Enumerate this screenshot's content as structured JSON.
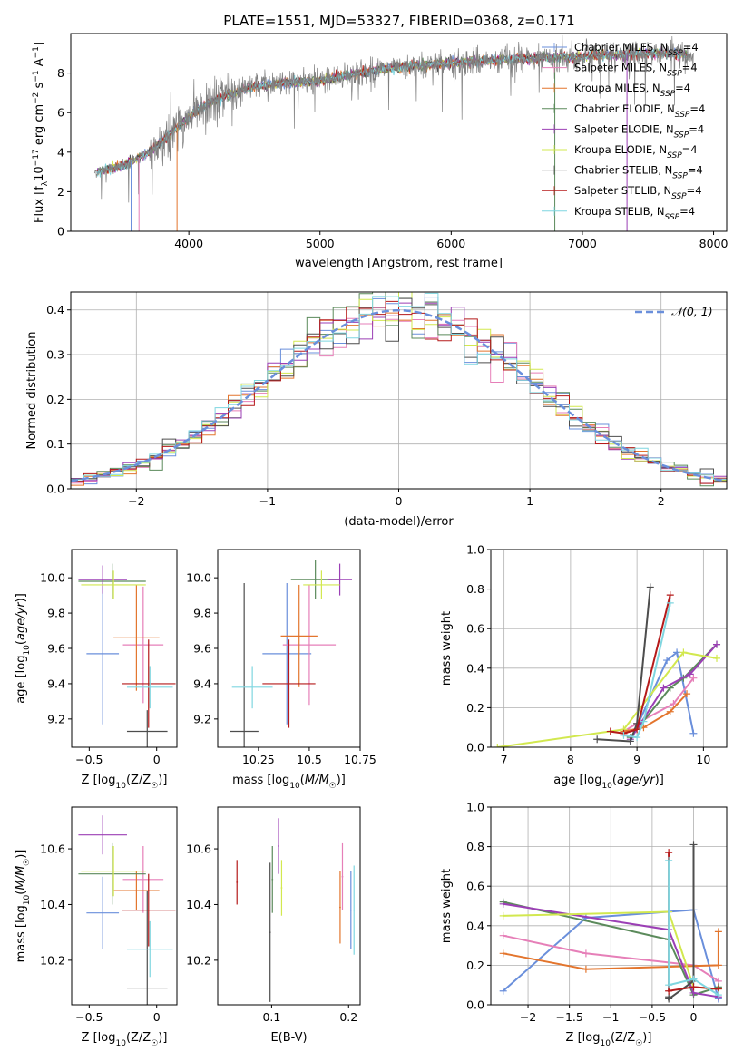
{
  "figure": {
    "title": "PLATE=1551, MJD=53327, FIBERID=0368, z=0.171"
  },
  "series_styles": [
    {
      "name": "Chabrier MILES, N_SSP=4",
      "color": "#6a8fdb"
    },
    {
      "name": "Salpeter MILES, N_SSP=4",
      "color": "#e67fb8"
    },
    {
      "name": "Kroupa MILES, N_SSP=4",
      "color": "#e3752d"
    },
    {
      "name": "Chabrier ELODIE, N_SSP=4",
      "color": "#5b8a5b"
    },
    {
      "name": "Salpeter ELODIE, N_SSP=4",
      "color": "#9b3fb5"
    },
    {
      "name": "Kroupa ELODIE, N_SSP=4",
      "color": "#d2e84f"
    },
    {
      "name": "Chabrier STELIB, N_SSP=4",
      "color": "#4d4d4d"
    },
    {
      "name": "Salpeter STELIB, N_SSP=4",
      "color": "#b51a1a"
    },
    {
      "name": "Kroupa STELIB, N_SSP=4",
      "color": "#7fd6e0"
    }
  ],
  "legend_labels": [
    {
      "pre": "Chabrier MILES, N",
      "sub": "SSP",
      "post": "=4"
    },
    {
      "pre": "Salpeter MILES, N",
      "sub": "SSP",
      "post": "=4"
    },
    {
      "pre": "Kroupa MILES, N",
      "sub": "SSP",
      "post": "=4"
    },
    {
      "pre": "Chabrier ELODIE, N",
      "sub": "SSP",
      "post": "=4"
    },
    {
      "pre": "Salpeter ELODIE, N",
      "sub": "SSP",
      "post": "=4"
    },
    {
      "pre": "Kroupa ELODIE, N",
      "sub": "SSP",
      "post": "=4"
    },
    {
      "pre": "Chabrier STELIB, N",
      "sub": "SSP",
      "post": "=4"
    },
    {
      "pre": "Salpeter STELIB, N",
      "sub": "SSP",
      "post": "=4"
    },
    {
      "pre": "Kroupa STELIB, N",
      "sub": "SSP",
      "post": "=4"
    }
  ],
  "chart_data": [
    {
      "id": "spectrum",
      "type": "line",
      "xlabel": "wavelength [Angstrom, rest frame]",
      "ylabel": "Flux [fλ10⁻¹⁷ erg cm⁻² s⁻¹ A⁻¹]",
      "xlim": [
        3100,
        8100
      ],
      "ylim": [
        0,
        10
      ],
      "xticks": [
        4000,
        5000,
        6000,
        7000,
        8000
      ],
      "yticks": [
        0,
        2,
        4,
        6,
        8
      ],
      "legend_position": "upper right",
      "continuum": {
        "x": [
          3280,
          3500,
          3700,
          3900,
          4100,
          4300,
          4500,
          4700,
          5000,
          5300,
          5600,
          6000,
          6400,
          6800,
          7200,
          7600,
          7850
        ],
        "y": [
          3.0,
          3.3,
          4.0,
          5.2,
          6.3,
          6.9,
          7.3,
          7.5,
          7.6,
          8.0,
          8.3,
          8.5,
          8.7,
          8.8,
          8.9,
          9.0,
          8.9
        ]
      },
      "observed_range": [
        3280,
        7850
      ],
      "model_range": [
        3500,
        7400
      ]
    },
    {
      "id": "residuals",
      "type": "histogram",
      "xlabel": "(data-model)/error",
      "ylabel": "Normed distribution",
      "xlim": [
        -2.5,
        2.5
      ],
      "ylim": [
        0,
        0.44
      ],
      "xticks": [
        -2,
        -1,
        0,
        1,
        2
      ],
      "yticks": [
        0.0,
        0.1,
        0.2,
        0.3,
        0.4
      ],
      "grid": true,
      "bin_width": 0.1,
      "legend_position": "upper right",
      "reference_curve": {
        "label": "𝒩(0, 1)",
        "mean": 0,
        "sigma": 1,
        "color": "#6a8fdb",
        "style": "dashed"
      }
    },
    {
      "id": "age-vs-Z",
      "type": "errorbar",
      "xlabel": "Z [log10(Z/Z☉)]",
      "ylabel": "age  [log10(age/yr)]",
      "xlim": [
        -0.63,
        0.15
      ],
      "ylim": [
        9.04,
        10.16
      ],
      "xticks": [
        -0.5,
        0.0
      ],
      "yticks": [
        9.2,
        9.4,
        9.6,
        9.8,
        10.0
      ],
      "points": [
        {
          "s": 0,
          "x": -0.4,
          "xerr": 0.12,
          "y": 9.57,
          "yerr": 0.4
        },
        {
          "s": 1,
          "x": -0.1,
          "xerr": 0.15,
          "y": 9.62,
          "yerr": 0.33
        },
        {
          "s": 2,
          "x": -0.15,
          "xerr": 0.17,
          "y": 9.66,
          "yerr": 0.3
        },
        {
          "s": 3,
          "x": -0.33,
          "xerr": 0.25,
          "y": 9.98,
          "yerr": 0.1
        },
        {
          "s": 4,
          "x": -0.4,
          "xerr": 0.18,
          "y": 9.99,
          "yerr": 0.08
        },
        {
          "s": 5,
          "x": -0.32,
          "xerr": 0.24,
          "y": 9.96,
          "yerr": 0.08
        },
        {
          "s": 6,
          "x": -0.07,
          "xerr": 0.15,
          "y": 9.13,
          "yerr": 0.12
        },
        {
          "s": 7,
          "x": -0.06,
          "xerr": 0.2,
          "y": 9.4,
          "yerr": 0.25
        },
        {
          "s": 8,
          "x": -0.05,
          "xerr": 0.17,
          "y": 9.38,
          "yerr": 0.12
        }
      ]
    },
    {
      "id": "age-vs-mass",
      "type": "errorbar",
      "xlabel": "mass [log10(M/M☉)]",
      "ylabel": "",
      "xlim": [
        10.05,
        10.75
      ],
      "ylim": [
        9.04,
        10.16
      ],
      "xticks": [
        10.25,
        10.5,
        10.75
      ],
      "yticks": [
        9.2,
        9.4,
        9.6,
        9.8,
        10.0
      ],
      "points": [
        {
          "s": 0,
          "x": 10.39,
          "xerr": 0.12,
          "y": 9.57,
          "yerr": 0.4
        },
        {
          "s": 1,
          "x": 10.5,
          "xerr": 0.13,
          "y": 9.62,
          "yerr": 0.34
        },
        {
          "s": 2,
          "x": 10.45,
          "xerr": 0.09,
          "y": 9.67,
          "yerr": 0.29
        },
        {
          "s": 3,
          "x": 10.53,
          "xerr": 0.12,
          "y": 9.99,
          "yerr": 0.11
        },
        {
          "s": 4,
          "x": 10.65,
          "xerr": 0.06,
          "y": 9.99,
          "yerr": 0.09
        },
        {
          "s": 5,
          "x": 10.56,
          "xerr": 0.09,
          "y": 9.96,
          "yerr": 0.08
        },
        {
          "s": 6,
          "x": 10.18,
          "xerr": 0.07,
          "y": 9.13,
          "yerr": 0.84
        },
        {
          "s": 7,
          "x": 10.4,
          "xerr": 0.13,
          "y": 9.4,
          "yerr": 0.25
        },
        {
          "s": 8,
          "x": 10.22,
          "xerr": 0.1,
          "y": 9.38,
          "yerr": 0.12
        }
      ]
    },
    {
      "id": "weight-vs-age",
      "type": "line",
      "xlabel": "age  [log10(age/yr)]",
      "ylabel": "mass weight",
      "xlim": [
        6.8,
        10.35
      ],
      "ylim": [
        0.0,
        1.0
      ],
      "xticks": [
        7,
        8,
        9,
        10
      ],
      "yticks": [
        0.0,
        0.2,
        0.4,
        0.6,
        0.8,
        1.0
      ],
      "grid": true,
      "series": [
        {
          "s": 0,
          "x": [
            8.9,
            9.45,
            9.6,
            9.85
          ],
          "y": [
            0.03,
            0.44,
            0.48,
            0.07
          ]
        },
        {
          "s": 1,
          "x": [
            8.8,
            9.0,
            9.55,
            9.85
          ],
          "y": [
            0.08,
            0.12,
            0.22,
            0.35
          ]
        },
        {
          "s": 2,
          "x": [
            8.8,
            9.1,
            9.5,
            9.75
          ],
          "y": [
            0.08,
            0.1,
            0.18,
            0.27
          ]
        },
        {
          "s": 3,
          "x": [
            8.9,
            9.5,
            9.7,
            10.2
          ],
          "y": [
            0.05,
            0.3,
            0.35,
            0.52
          ]
        },
        {
          "s": 4,
          "x": [
            8.9,
            9.4,
            9.8,
            10.2
          ],
          "y": [
            0.04,
            0.3,
            0.37,
            0.52
          ]
        },
        {
          "s": 5,
          "x": [
            6.9,
            8.8,
            9.7,
            10.2
          ],
          "y": [
            0.0,
            0.09,
            0.48,
            0.45
          ]
        },
        {
          "s": 6,
          "x": [
            8.4,
            8.9,
            9.0,
            9.2
          ],
          "y": [
            0.04,
            0.03,
            0.12,
            0.81
          ]
        },
        {
          "s": 7,
          "x": [
            8.6,
            8.8,
            9.0,
            9.5
          ],
          "y": [
            0.08,
            0.07,
            0.09,
            0.77
          ]
        },
        {
          "s": 8,
          "x": [
            8.8,
            9.0,
            9.1,
            9.5
          ],
          "y": [
            0.06,
            0.05,
            0.13,
            0.73
          ]
        }
      ]
    },
    {
      "id": "mass-vs-Z",
      "type": "errorbar",
      "xlabel": "Z [log10(Z/Z☉)]",
      "ylabel": "mass [log10(M/M☉)]",
      "xlim": [
        -0.63,
        0.15
      ],
      "ylim": [
        10.04,
        10.75
      ],
      "xticks": [
        -0.5,
        0.0
      ],
      "yticks": [
        10.2,
        10.4,
        10.6
      ],
      "points": [
        {
          "s": 0,
          "x": -0.4,
          "xerr": 0.12,
          "y": 10.37,
          "yerr": 0.13
        },
        {
          "s": 1,
          "x": -0.1,
          "xerr": 0.15,
          "y": 10.49,
          "yerr": 0.12
        },
        {
          "s": 2,
          "x": -0.15,
          "xerr": 0.17,
          "y": 10.45,
          "yerr": 0.07
        },
        {
          "s": 3,
          "x": -0.33,
          "xerr": 0.25,
          "y": 10.51,
          "yerr": 0.11
        },
        {
          "s": 4,
          "x": -0.4,
          "xerr": 0.18,
          "y": 10.65,
          "yerr": 0.07
        },
        {
          "s": 5,
          "x": -0.32,
          "xerr": 0.24,
          "y": 10.52,
          "yerr": 0.09
        },
        {
          "s": 6,
          "x": -0.07,
          "xerr": 0.15,
          "y": 10.1,
          "yerr": 0.35
        },
        {
          "s": 7,
          "x": -0.06,
          "xerr": 0.2,
          "y": 10.38,
          "yerr": 0.13
        },
        {
          "s": 8,
          "x": -0.05,
          "xerr": 0.17,
          "y": 10.24,
          "yerr": 0.1
        }
      ]
    },
    {
      "id": "mass-vs-EBV",
      "type": "errorbar",
      "xlabel": "E(B-V)",
      "ylabel": "",
      "xlim": [
        0.03,
        0.215
      ],
      "ylim": [
        10.04,
        10.75
      ],
      "xticks": [
        0.1,
        0.2
      ],
      "yticks": [
        10.2,
        10.4,
        10.6
      ],
      "points": [
        {
          "s": 0,
          "x": 0.203,
          "xerr": 0.001,
          "y": 10.38,
          "yerr": 0.14
        },
        {
          "s": 1,
          "x": 0.192,
          "xerr": 0.001,
          "y": 10.5,
          "yerr": 0.12
        },
        {
          "s": 2,
          "x": 0.189,
          "xerr": 0.001,
          "y": 10.39,
          "yerr": 0.13
        },
        {
          "s": 3,
          "x": 0.101,
          "xerr": 0.001,
          "y": 10.49,
          "yerr": 0.12
        },
        {
          "s": 4,
          "x": 0.109,
          "xerr": 0.001,
          "y": 10.61,
          "yerr": 0.1
        },
        {
          "s": 5,
          "x": 0.113,
          "xerr": 0.001,
          "y": 10.46,
          "yerr": 0.1
        },
        {
          "s": 6,
          "x": 0.098,
          "xerr": 0.001,
          "y": 10.3,
          "yerr": 0.25
        },
        {
          "s": 7,
          "x": 0.055,
          "xerr": 0.001,
          "y": 10.48,
          "yerr": 0.08
        },
        {
          "s": 8,
          "x": 0.207,
          "xerr": 0.001,
          "y": 10.38,
          "yerr": 0.16
        }
      ]
    },
    {
      "id": "weight-vs-Z",
      "type": "line",
      "xlabel": "Z [log10(Z/Z☉)]",
      "ylabel": "mass weight",
      "xlim": [
        -2.45,
        0.4
      ],
      "ylim": [
        0.0,
        1.0
      ],
      "xticks": [
        -2.0,
        -1.5,
        -1.0,
        -0.5,
        0.0
      ],
      "yticks": [
        0.0,
        0.2,
        0.4,
        0.6,
        0.8,
        1.0
      ],
      "grid": true,
      "series": [
        {
          "s": 0,
          "x": [
            -2.3,
            -1.3,
            0.0,
            0.3
          ],
          "y": [
            0.07,
            0.44,
            0.48,
            0.03
          ]
        },
        {
          "s": 1,
          "x": [
            -2.3,
            -1.3,
            0.0,
            0.3
          ],
          "y": [
            0.35,
            0.26,
            0.2,
            0.12
          ]
        },
        {
          "s": 2,
          "x": [
            -2.3,
            -1.3,
            0.3,
            0.3
          ],
          "y": [
            0.26,
            0.18,
            0.2,
            0.37
          ]
        },
        {
          "s": 3,
          "x": [
            -2.3,
            -0.3,
            0.0,
            0.3
          ],
          "y": [
            0.52,
            0.33,
            0.05,
            0.09
          ]
        },
        {
          "s": 4,
          "x": [
            -2.3,
            -0.3,
            0.0,
            0.3
          ],
          "y": [
            0.51,
            0.38,
            0.06,
            0.04
          ]
        },
        {
          "s": 5,
          "x": [
            -2.3,
            -0.3,
            0.0,
            0.3
          ],
          "y": [
            0.45,
            0.47,
            0.09,
            0.08
          ]
        },
        {
          "s": 6,
          "x": [
            -0.3,
            -0.3,
            0.0,
            0.0
          ],
          "y": [
            0.04,
            0.03,
            0.12,
            0.81
          ]
        },
        {
          "s": 7,
          "x": [
            -0.3,
            -0.3,
            0.0,
            0.3
          ],
          "y": [
            0.77,
            0.07,
            0.09,
            0.08
          ]
        },
        {
          "s": 8,
          "x": [
            -0.3,
            -0.3,
            0.0,
            0.3
          ],
          "y": [
            0.73,
            0.1,
            0.13,
            0.05
          ]
        }
      ]
    }
  ]
}
